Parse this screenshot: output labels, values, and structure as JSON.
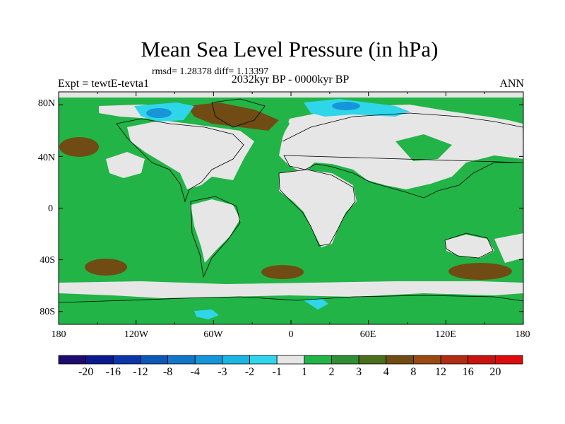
{
  "title": "Mean Sea Level Pressure (in hPa)",
  "stats": "rmsd= 1.28378 diff= 1.13397",
  "experiment": "Expt = tewtE-tevta1",
  "period": "2032kyr BP - 0000kyr BP",
  "season": "ANN",
  "lat_ticks": [
    "80N",
    "40N",
    "0",
    "40S",
    "80S"
  ],
  "lon_ticks": [
    "180",
    "120W",
    "60W",
    "0",
    "60E",
    "120E",
    "180"
  ],
  "colorbar": {
    "labels": [
      "-20",
      "-16",
      "-12",
      "-8",
      "-4",
      "-3",
      "-2",
      "-1",
      "1",
      "2",
      "3",
      "4",
      "8",
      "12",
      "16",
      "20"
    ],
    "colors": [
      "#1f0b6e",
      "#0a1a8c",
      "#0a36a8",
      "#0d57b8",
      "#1276c8",
      "#1696d8",
      "#1bb5e6",
      "#2fd6ea",
      "#e6e6e6",
      "#22b447",
      "#2e8f35",
      "#4a6e1c",
      "#704c14",
      "#984a10",
      "#b02c12",
      "#c8140e",
      "#dc0c0c"
    ]
  },
  "map_colors": {
    "land_neutral": "#e6e6e6",
    "green": "#22b447",
    "brown": "#704c14",
    "light_blue": "#2fd6ea",
    "mid_blue": "#1696d8",
    "dark_blue": "#0d57b8"
  }
}
